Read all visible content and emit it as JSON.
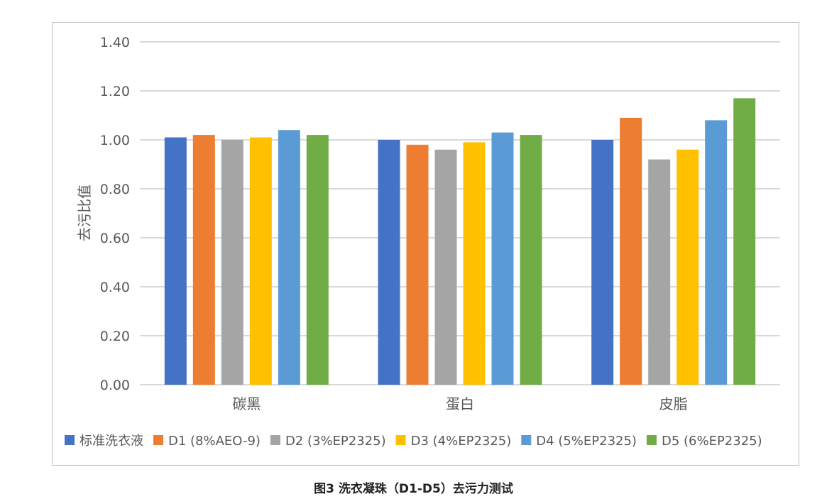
{
  "chart_data": {
    "type": "bar",
    "title": "",
    "xlabel": "",
    "ylabel": "去污比值",
    "ylim": [
      0,
      1.4
    ],
    "yticks": [
      "0.00",
      "0.20",
      "0.40",
      "0.60",
      "0.80",
      "1.00",
      "1.20",
      "1.40"
    ],
    "grid": true,
    "legend_position": "bottom",
    "categories": [
      "碳黑",
      "蛋白",
      "皮脂"
    ],
    "series": [
      {
        "name": "标准洗衣液",
        "color": "#4472c4",
        "values": [
          1.01,
          1.0,
          1.0
        ]
      },
      {
        "name": "D1 (8%AEO-9)",
        "color": "#ed7d31",
        "values": [
          1.02,
          0.98,
          1.09
        ]
      },
      {
        "name": "D2 (3%EP2325)",
        "color": "#a5a5a5",
        "values": [
          1.0,
          0.96,
          0.92
        ]
      },
      {
        "name": "D3 (4%EP2325)",
        "color": "#ffc000",
        "values": [
          1.01,
          0.99,
          0.96
        ]
      },
      {
        "name": "D4 (5%EP2325)",
        "color": "#5b9bd5",
        "values": [
          1.04,
          1.03,
          1.08
        ]
      },
      {
        "name": "D5 (6%EP2325)",
        "color": "#70ad47",
        "values": [
          1.02,
          1.02,
          1.17
        ]
      }
    ]
  },
  "caption": "图3 洗衣凝珠（D1-D5）去污力测试"
}
